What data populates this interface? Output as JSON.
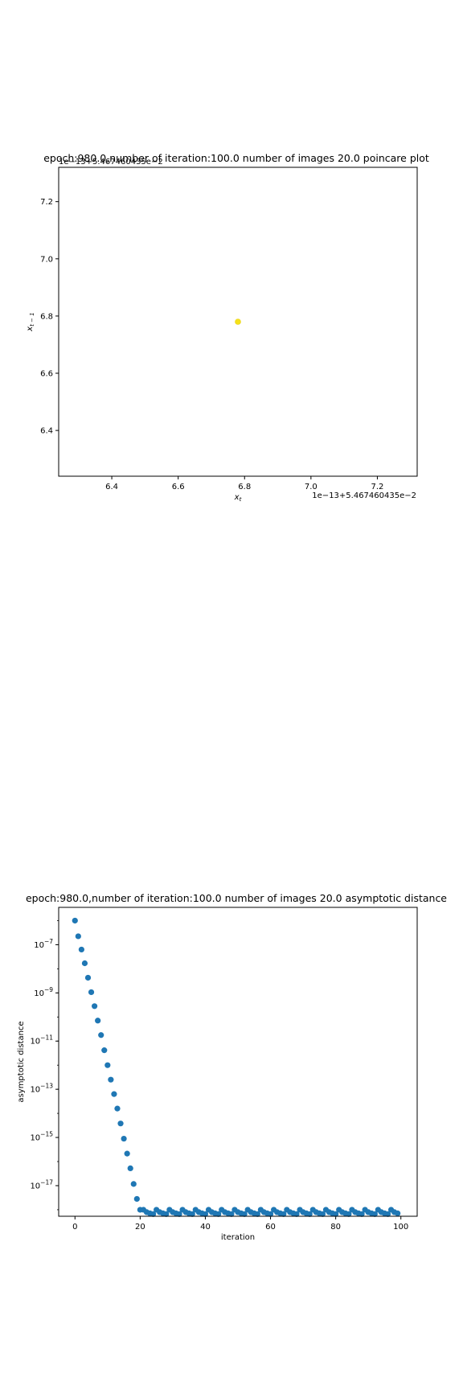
{
  "chart_data": [
    {
      "type": "scatter",
      "title": "epoch:980.0,number of iteration:100.0 number of images 20.0 poincare plot",
      "xlabel": "x_t",
      "ylabel": "x_{t-1}",
      "x_offset_label": "1e−13+5.467460435e−2",
      "y_offset_label": "1e−13+5.467460435e−2",
      "xlim": [
        6.24,
        7.32
      ],
      "ylim": [
        6.24,
        7.32
      ],
      "xticks": [
        "6.4",
        "6.6",
        "6.8",
        "7.0",
        "7.2"
      ],
      "xtick_values": [
        6.4,
        6.6,
        6.8,
        7.0,
        7.2
      ],
      "yticks": [
        "6.4",
        "6.6",
        "6.8",
        "7.0",
        "7.2"
      ],
      "ytick_values": [
        6.4,
        6.6,
        6.8,
        7.0,
        7.2
      ],
      "grid": false,
      "points": [
        {
          "x": 6.78,
          "y": 6.78
        }
      ],
      "marker_color": "#f5e11a"
    },
    {
      "type": "scatter",
      "title": "epoch:980.0,number of iteration:100.0  number of images 20.0 asymptotic distance",
      "xlabel": "iteration",
      "ylabel": "asymptotic distance",
      "yscale": "log",
      "xlim": [
        -5,
        105
      ],
      "ylim_log10": [
        -18.27,
        -5.45
      ],
      "xticks": [
        "0",
        "20",
        "40",
        "60",
        "80",
        "100"
      ],
      "xtick_values": [
        0,
        20,
        40,
        60,
        80,
        100
      ],
      "ytick_exponents": [
        -7,
        -9,
        -11,
        -13,
        -15,
        -17
      ],
      "grid": false,
      "marker_color": "#1f77b4",
      "x": [
        0,
        1,
        2,
        3,
        4,
        5,
        6,
        7,
        8,
        9,
        10,
        11,
        12,
        13,
        14,
        15,
        16,
        17,
        18,
        19,
        20,
        21,
        22,
        23,
        24,
        25,
        26,
        27,
        28,
        29,
        30,
        31,
        32,
        33,
        34,
        35,
        36,
        37,
        38,
        39,
        40,
        41,
        42,
        43,
        44,
        45,
        46,
        47,
        48,
        49,
        50,
        51,
        52,
        53,
        54,
        55,
        56,
        57,
        58,
        59,
        60,
        61,
        62,
        63,
        64,
        65,
        66,
        67,
        68,
        69,
        70,
        71,
        72,
        73,
        74,
        75,
        76,
        77,
        78,
        79,
        80,
        81,
        82,
        83,
        84,
        85,
        86,
        87,
        88,
        89,
        90,
        91,
        92,
        93,
        94,
        95,
        96,
        97,
        98,
        99
      ],
      "log10_y": [
        -6.0,
        -6.65,
        -7.2,
        -7.77,
        -8.37,
        -8.97,
        -9.55,
        -10.15,
        -10.75,
        -11.38,
        -12.0,
        -12.6,
        -13.2,
        -13.8,
        -14.42,
        -15.05,
        -15.67,
        -16.28,
        -16.93,
        -17.55,
        -18.0,
        -18.0,
        -18.1,
        -18.15,
        -18.18,
        -18.0,
        -18.1,
        -18.15,
        -18.18,
        -18.0,
        -18.1,
        -18.15,
        -18.18,
        -18.0,
        -18.1,
        -18.15,
        -18.18,
        -18.0,
        -18.1,
        -18.15,
        -18.18,
        -18.0,
        -18.1,
        -18.15,
        -18.18,
        -18.0,
        -18.1,
        -18.15,
        -18.18,
        -18.0,
        -18.1,
        -18.15,
        -18.18,
        -18.0,
        -18.1,
        -18.15,
        -18.18,
        -18.0,
        -18.1,
        -18.15,
        -18.18,
        -18.0,
        -18.1,
        -18.15,
        -18.18,
        -18.0,
        -18.1,
        -18.15,
        -18.18,
        -18.0,
        -18.1,
        -18.15,
        -18.18,
        -18.0,
        -18.1,
        -18.15,
        -18.18,
        -18.0,
        -18.1,
        -18.15,
        -18.18,
        -18.0,
        -18.1,
        -18.15,
        -18.18,
        -18.0,
        -18.1,
        -18.15,
        -18.18,
        -18.0,
        -18.1,
        -18.15,
        -18.18,
        -18.0,
        -18.1,
        -18.15,
        -18.18,
        -18.0,
        -18.1,
        -18.15
      ]
    }
  ]
}
